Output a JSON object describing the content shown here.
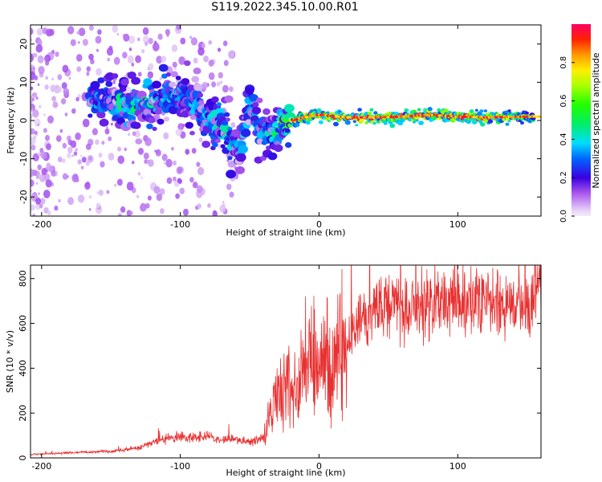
{
  "title": "S119.2022.345.10.00.R01",
  "chart_data": [
    {
      "type": "heatmap",
      "xlabel": "Height of straight line (km)",
      "ylabel": "Frequency (Hz)",
      "xlim": [
        -208,
        160
      ],
      "ylim": [
        -25,
        25
      ],
      "x_ticks": [
        -200,
        -100,
        0,
        100
      ],
      "y_ticks": [
        20,
        10,
        0,
        -10,
        -20
      ],
      "colorbar": {
        "label": "Normalized spectral amplitude",
        "range": [
          0,
          1
        ],
        "ticks": [
          "0.0",
          "0.2",
          "0.4",
          "0.6",
          "0.8"
        ]
      },
      "ridge": [
        {
          "x": -165,
          "y": 5,
          "amp": 0.3
        },
        {
          "x": -150,
          "y": 5,
          "amp": 0.35
        },
        {
          "x": -135,
          "y": 4,
          "amp": 0.4
        },
        {
          "x": -120,
          "y": 5,
          "amp": 0.4
        },
        {
          "x": -105,
          "y": 6,
          "amp": 0.35
        },
        {
          "x": -95,
          "y": 7,
          "amp": 0.3
        },
        {
          "x": -85,
          "y": 2,
          "amp": 0.35
        },
        {
          "x": -75,
          "y": -1,
          "amp": 0.4
        },
        {
          "x": -65,
          "y": -4,
          "amp": 0.4
        },
        {
          "x": -57,
          "y": -9,
          "amp": 0.3
        },
        {
          "x": -50,
          "y": 5,
          "amp": 0.4
        },
        {
          "x": -43,
          "y": -4,
          "amp": 0.35
        },
        {
          "x": -35,
          "y": -3,
          "amp": 0.35
        },
        {
          "x": -25,
          "y": -1,
          "amp": 0.5
        },
        {
          "x": -15,
          "y": 0.5,
          "amp": 0.8
        },
        {
          "x": 0,
          "y": 1.5,
          "amp": 0.9
        },
        {
          "x": 20,
          "y": 0.8,
          "amp": 0.95
        },
        {
          "x": 40,
          "y": 0.8,
          "amp": 0.95
        },
        {
          "x": 60,
          "y": 1,
          "amp": 0.9
        },
        {
          "x": 80,
          "y": 1.5,
          "amp": 0.95
        },
        {
          "x": 100,
          "y": 1,
          "amp": 0.95
        },
        {
          "x": 120,
          "y": 0.8,
          "amp": 0.95
        },
        {
          "x": 140,
          "y": 1,
          "amp": 0.7
        },
        {
          "x": 155,
          "y": 1,
          "amp": 0.6
        }
      ]
    },
    {
      "type": "line",
      "xlabel": "Height of straight line (km)",
      "ylabel": "SNR (10 * v/v)",
      "xlim": [
        -208,
        160
      ],
      "ylim": [
        0,
        860
      ],
      "x_ticks": [
        -200,
        -100,
        0,
        100
      ],
      "y_ticks": [
        0,
        200,
        400,
        600,
        800
      ],
      "color": "#e83030",
      "series": [
        {
          "x": [
            -208,
            -190,
            -170,
            -150,
            -130,
            -120,
            -110,
            -100,
            -90,
            -80,
            -70,
            -60,
            -50,
            -40,
            -35,
            -30,
            -25,
            -20,
            -15,
            -10,
            -5,
            0,
            5,
            10,
            15,
            20,
            25,
            30,
            40,
            50,
            60,
            70,
            80,
            90,
            100,
            110,
            120,
            130,
            140,
            150,
            160
          ],
          "values": [
            15,
            20,
            25,
            30,
            45,
            70,
            85,
            95,
            90,
            100,
            80,
            85,
            70,
            90,
            200,
            280,
            350,
            300,
            330,
            400,
            420,
            380,
            440,
            420,
            430,
            500,
            560,
            620,
            660,
            690,
            680,
            690,
            670,
            700,
            690,
            680,
            700,
            690,
            690,
            700,
            710
          ]
        }
      ]
    }
  ]
}
